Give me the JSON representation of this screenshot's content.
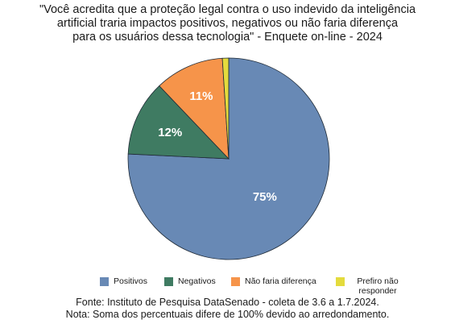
{
  "colors": {
    "positivos": "#6889b5",
    "negativos": "#3f7b62",
    "nao_faria_diferenca": "#f6944a",
    "prefiro_nao_responder": "#e4db3d"
  },
  "chart_data": {
    "type": "pie",
    "title_lines": [
      "\"Você acredita que a proteção legal contra o uso indevido da inteligência",
      "artificial traria impactos positivos, negativos ou não faria diferença",
      "para os usuários dessa tecnologia\" - Enquete on-line - 2024"
    ],
    "slices": [
      {
        "label": "Positivos",
        "value": 75,
        "display": "75%",
        "color": "#6889b5"
      },
      {
        "label": "Negativos",
        "value": 12,
        "display": "12%",
        "color": "#3f7b62"
      },
      {
        "label": "Não faria diferença",
        "value": 11,
        "display": "11%",
        "color": "#f6944a"
      },
      {
        "label": "Prefiro não responder",
        "value": 1,
        "display": "",
        "color": "#e4db3d"
      }
    ],
    "legend_position": "bottom"
  },
  "legend": [
    {
      "label": "Positivos"
    },
    {
      "label": "Negativos"
    },
    {
      "label": "Não faria diferença"
    },
    {
      "label": "Prefiro não responder"
    }
  ],
  "footer": {
    "source": "Fonte: Instituto de Pesquisa DataSenado - coleta de 3.6 a 1.7.2024.",
    "note": "Nota: Soma dos percentuais difere de 100% devido ao arredondamento."
  }
}
